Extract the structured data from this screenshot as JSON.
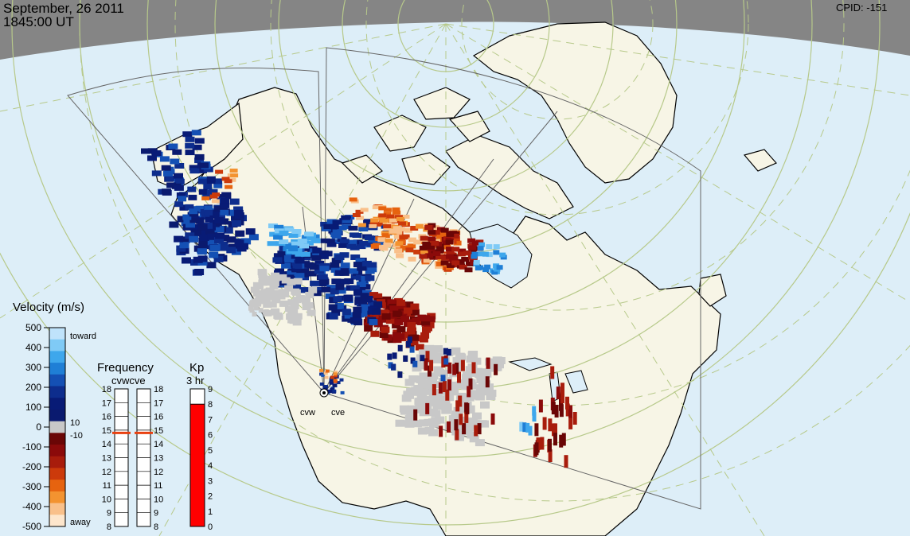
{
  "header": {
    "date": "September, 26 2011",
    "time": "1845:00 UT",
    "cpid": "CPID:  -151"
  },
  "colors": {
    "background_sea": "#ddeef8",
    "land": "#f6f4e6",
    "night_band": "#808080",
    "grid_lines": "#b7c98a",
    "fov_outline": "#707070",
    "ground_scatter": "#c8c8c8",
    "kp_fill": "#ff0000"
  },
  "velocity_legend": {
    "title": "Velocity (m/s)",
    "ticks": [
      "500",
      "400",
      "300",
      "200",
      "100",
      "0",
      "-100",
      "-200",
      "-300",
      "-400",
      "-500"
    ],
    "toward_label": "toward",
    "away_label": "away",
    "small_pos": "10",
    "small_neg": "-10",
    "palette": [
      "#bfe3fb",
      "#7fcaf6",
      "#3ea7ec",
      "#1f7fd6",
      "#1450b4",
      "#0d2d8d",
      "#081b76",
      "#0a1a6f",
      "#c8c8c8",
      "#6a0606",
      "#8b0a0a",
      "#a81c0c",
      "#cc3a0b",
      "#e6630f",
      "#f39330",
      "#f9c08a",
      "#fde6cc"
    ]
  },
  "frequency_legend": {
    "title": "Frequency",
    "subtitle": "cvwcve",
    "left_ticks": [
      "18",
      "17",
      "16",
      "15",
      "14",
      "13",
      "12",
      "11",
      "10",
      "9",
      "8"
    ],
    "right_ticks": [
      "18",
      "17",
      "16",
      "15",
      "14",
      "13",
      "12",
      "11",
      "10",
      "9",
      "8"
    ],
    "cvw_freq_mhz": 14.8,
    "cve_freq_mhz": 14.8
  },
  "kp_legend": {
    "title": "Kp",
    "subtitle": "3 hr",
    "ticks": [
      "9",
      "8",
      "7",
      "6",
      "5",
      "4",
      "3",
      "2",
      "1",
      "0"
    ],
    "kp_value": 8
  },
  "radars": {
    "west": "cvw",
    "east": "cve"
  }
}
